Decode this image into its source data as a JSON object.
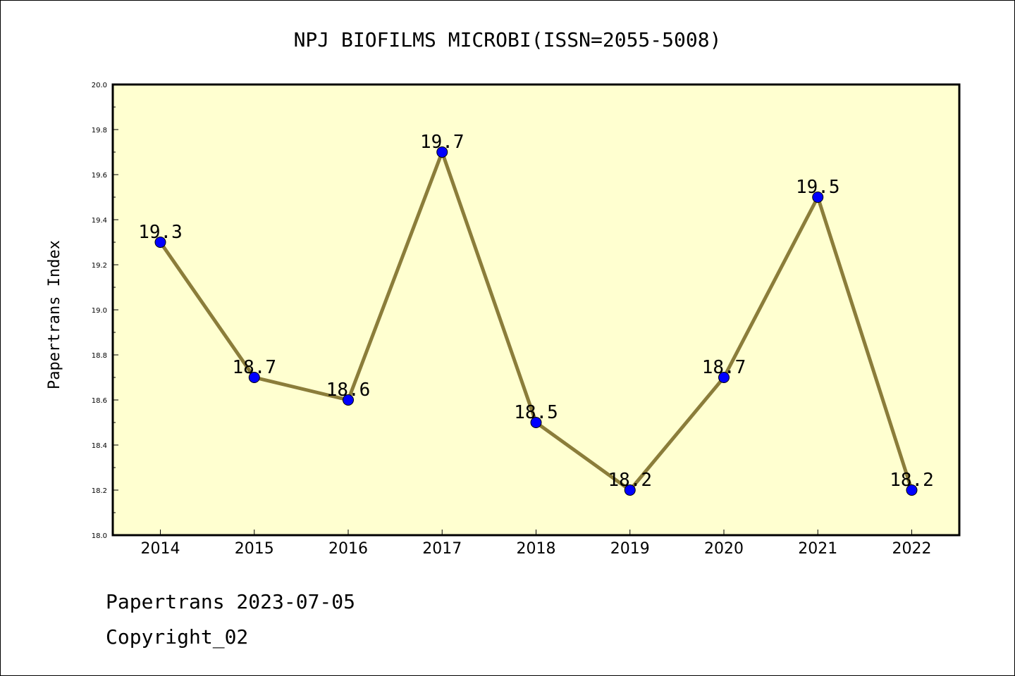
{
  "chart_data": {
    "type": "line",
    "title": "NPJ BIOFILMS MICROBI(ISSN=2055-5008)",
    "xlabel": "",
    "ylabel": "Papertrans Index",
    "categories": [
      "2014",
      "2015",
      "2016",
      "2017",
      "2018",
      "2019",
      "2020",
      "2021",
      "2022"
    ],
    "values": [
      19.3,
      18.7,
      18.6,
      19.7,
      18.5,
      18.2,
      18.7,
      19.5,
      18.2
    ],
    "data_labels": [
      "19.3",
      "18.7",
      "18.6",
      "19.7",
      "18.5",
      "18.2",
      "18.7",
      "19.5",
      "18.2"
    ],
    "ylim": [
      18.0,
      20.0
    ],
    "yticks": [
      "18.0",
      "18.2",
      "18.4",
      "18.6",
      "18.8",
      "19.0",
      "19.2",
      "19.4",
      "19.6",
      "19.8",
      "20.0"
    ],
    "grid": false,
    "colors": {
      "plot_background": "#ffffd0",
      "line": "#8b7d3a",
      "marker": "#0000ff"
    }
  },
  "footer": {
    "line1": "Papertrans 2023-07-05",
    "line2": "Copyright_02"
  }
}
